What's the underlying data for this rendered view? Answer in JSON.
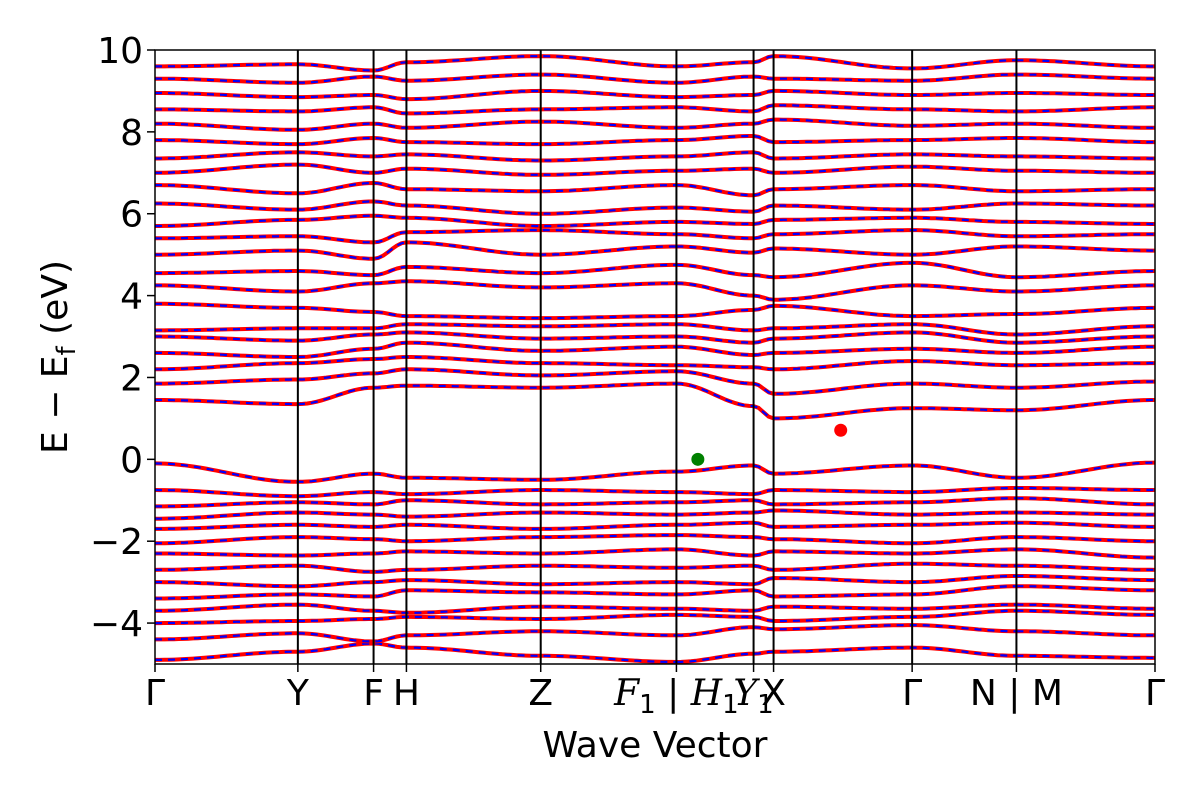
{
  "chart_data": {
    "type": "line",
    "title": "",
    "xlabel": "Wave Vector",
    "ylabel": "E − E_f (eV)",
    "ylabel_parts": {
      "main": "E − E",
      "sub": "f",
      "unit": " (eV)"
    },
    "ylim": [
      -5,
      10
    ],
    "yticks": [
      {
        "value": -4,
        "label": "−4"
      },
      {
        "value": -2,
        "label": "−2"
      },
      {
        "value": 0,
        "label": "0"
      },
      {
        "value": 2,
        "label": "2"
      },
      {
        "value": 4,
        "label": "4"
      },
      {
        "value": 6,
        "label": "6"
      },
      {
        "value": 8,
        "label": "8"
      },
      {
        "value": 10,
        "label": "10"
      }
    ],
    "xlim": [
      0,
      7.0
    ],
    "high_symmetry_points": [
      {
        "x": 0.0,
        "label": "Γ"
      },
      {
        "x": 1.0,
        "label": "Y"
      },
      {
        "x": 1.53,
        "label": "F"
      },
      {
        "x": 1.76,
        "label": "H"
      },
      {
        "x": 2.7,
        "label": "Z"
      },
      {
        "x": 3.65,
        "label": "F1|H1",
        "display": {
          "main1": "F",
          "sub1": "1",
          "sep": " | ",
          "main2": "H",
          "sub2": "1"
        }
      },
      {
        "x": 4.19,
        "label": "Y1",
        "display": {
          "main": "Y",
          "sub": "1"
        }
      },
      {
        "x": 4.33,
        "label": "X"
      },
      {
        "x": 5.3,
        "label": "Γ"
      },
      {
        "x": 6.03,
        "label": "N|M",
        "display": {
          "left": "N",
          "sep": " | ",
          "right": "M"
        }
      },
      {
        "x": 7.0,
        "label": "Γ"
      }
    ],
    "segment_breaks": [
      3.65,
      6.03
    ],
    "series": [
      {
        "style": "solid",
        "color": "#ff0000"
      },
      {
        "style": "dashed",
        "color": "#0000ff"
      }
    ],
    "band_edges": [
      {
        "kind": "VBM",
        "x": 3.8,
        "y": 0.0,
        "color": "#008000"
      },
      {
        "kind": "CBM",
        "x": 4.8,
        "y": 0.71,
        "color": "#ff0000"
      }
    ],
    "band_anchors": [
      [
        -4.9,
        -4.7,
        -4.5,
        -4.6,
        -4.8,
        -4.95,
        -4.75,
        -4.7,
        -4.6,
        -4.8,
        -4.85
      ],
      [
        -4.4,
        -4.25,
        -4.45,
        -4.3,
        -4.2,
        -4.3,
        -4.1,
        -4.15,
        -4.05,
        -4.2,
        -4.3
      ],
      [
        -4.0,
        -3.95,
        -3.9,
        -3.85,
        -3.9,
        -3.8,
        -3.85,
        -3.95,
        -3.85,
        -3.7,
        -3.8
      ],
      [
        -3.7,
        -3.55,
        -3.7,
        -3.75,
        -3.6,
        -3.65,
        -3.7,
        -3.6,
        -3.65,
        -3.55,
        -3.65
      ],
      [
        -3.4,
        -3.3,
        -3.35,
        -3.2,
        -3.25,
        -3.3,
        -3.2,
        -3.35,
        -3.3,
        -3.1,
        -3.2
      ],
      [
        -3.0,
        -3.1,
        -3.0,
        -2.95,
        -3.05,
        -3.0,
        -3.05,
        -2.9,
        -3.0,
        -2.85,
        -2.95
      ],
      [
        -2.7,
        -2.6,
        -2.75,
        -2.7,
        -2.6,
        -2.65,
        -2.6,
        -2.7,
        -2.55,
        -2.6,
        -2.7
      ],
      [
        -2.3,
        -2.35,
        -2.3,
        -2.25,
        -2.3,
        -2.2,
        -2.35,
        -2.25,
        -2.3,
        -2.2,
        -2.4
      ],
      [
        -2.05,
        -1.9,
        -1.95,
        -2.0,
        -1.9,
        -1.85,
        -1.9,
        -1.95,
        -2.05,
        -1.9,
        -2.0
      ],
      [
        -1.7,
        -1.6,
        -1.65,
        -1.6,
        -1.7,
        -1.6,
        -1.55,
        -1.65,
        -1.6,
        -1.55,
        -1.65
      ],
      [
        -1.45,
        -1.3,
        -1.35,
        -1.4,
        -1.3,
        -1.35,
        -1.3,
        -1.25,
        -1.35,
        -1.3,
        -1.35
      ],
      [
        -1.15,
        -1.05,
        -1.1,
        -1.0,
        -1.1,
        -1.05,
        -1.0,
        -1.1,
        -1.05,
        -0.95,
        -1.1
      ],
      [
        -0.75,
        -0.9,
        -0.8,
        -0.85,
        -0.75,
        -0.8,
        -0.85,
        -0.75,
        -0.8,
        -0.7,
        -0.75
      ],
      [
        -0.1,
        -0.55,
        -0.35,
        -0.45,
        -0.5,
        -0.3,
        -0.15,
        -0.35,
        -0.15,
        -0.45,
        -0.08
      ],
      [
        1.45,
        1.35,
        1.75,
        1.8,
        1.75,
        1.85,
        1.3,
        1.0,
        1.25,
        1.2,
        1.45
      ],
      [
        1.85,
        1.95,
        2.1,
        2.2,
        2.05,
        2.15,
        1.85,
        1.6,
        1.85,
        1.75,
        1.9
      ],
      [
        2.2,
        2.35,
        2.45,
        2.5,
        2.35,
        2.3,
        2.25,
        2.2,
        2.4,
        2.3,
        2.35
      ],
      [
        2.6,
        2.5,
        2.7,
        2.85,
        2.65,
        2.75,
        2.55,
        2.6,
        2.7,
        2.6,
        2.75
      ],
      [
        3.0,
        2.9,
        3.05,
        3.1,
        2.95,
        3.0,
        2.85,
        2.95,
        3.1,
        2.85,
        3.0
      ],
      [
        3.15,
        3.2,
        3.2,
        3.3,
        3.25,
        3.3,
        3.15,
        3.2,
        3.3,
        3.05,
        3.25
      ],
      [
        3.8,
        3.7,
        3.6,
        3.5,
        3.45,
        3.5,
        3.65,
        3.75,
        3.5,
        3.55,
        3.7
      ],
      [
        4.25,
        4.1,
        4.3,
        4.35,
        4.2,
        4.3,
        4.0,
        3.9,
        4.25,
        4.1,
        4.25
      ],
      [
        4.55,
        4.6,
        4.5,
        4.7,
        4.55,
        4.75,
        4.5,
        4.45,
        4.8,
        4.45,
        4.6
      ],
      [
        5.0,
        5.1,
        4.9,
        5.3,
        5.0,
        5.2,
        5.05,
        5.15,
        5.0,
        5.2,
        5.1
      ],
      [
        5.4,
        5.45,
        5.3,
        5.55,
        5.6,
        5.5,
        5.4,
        5.5,
        5.6,
        5.45,
        5.5
      ],
      [
        5.7,
        5.85,
        5.95,
        5.9,
        5.7,
        5.8,
        5.75,
        5.85,
        5.9,
        5.8,
        5.75
      ],
      [
        6.25,
        6.1,
        6.3,
        6.2,
        6.0,
        6.15,
        6.05,
        6.2,
        6.1,
        6.25,
        6.2
      ],
      [
        6.7,
        6.5,
        6.75,
        6.6,
        6.55,
        6.7,
        6.45,
        6.6,
        6.7,
        6.55,
        6.6
      ],
      [
        7.0,
        7.2,
        7.0,
        7.1,
        6.95,
        7.05,
        7.1,
        7.0,
        7.15,
        7.05,
        7.0
      ],
      [
        7.35,
        7.5,
        7.4,
        7.45,
        7.3,
        7.4,
        7.5,
        7.35,
        7.45,
        7.4,
        7.35
      ],
      [
        7.8,
        7.7,
        7.85,
        7.75,
        7.7,
        7.8,
        7.9,
        7.75,
        7.8,
        7.85,
        7.75
      ],
      [
        8.2,
        8.05,
        8.2,
        8.1,
        8.25,
        8.1,
        8.2,
        8.3,
        8.15,
        8.2,
        8.1
      ],
      [
        8.55,
        8.5,
        8.6,
        8.45,
        8.55,
        8.6,
        8.5,
        8.65,
        8.55,
        8.5,
        8.6
      ],
      [
        8.95,
        8.85,
        8.9,
        8.8,
        9.0,
        8.85,
        8.9,
        9.0,
        8.9,
        8.95,
        8.9
      ],
      [
        9.3,
        9.2,
        9.35,
        9.25,
        9.4,
        9.2,
        9.35,
        9.3,
        9.25,
        9.4,
        9.3
      ],
      [
        9.6,
        9.65,
        9.5,
        9.7,
        9.85,
        9.6,
        9.7,
        9.85,
        9.55,
        9.75,
        9.6
      ]
    ]
  }
}
